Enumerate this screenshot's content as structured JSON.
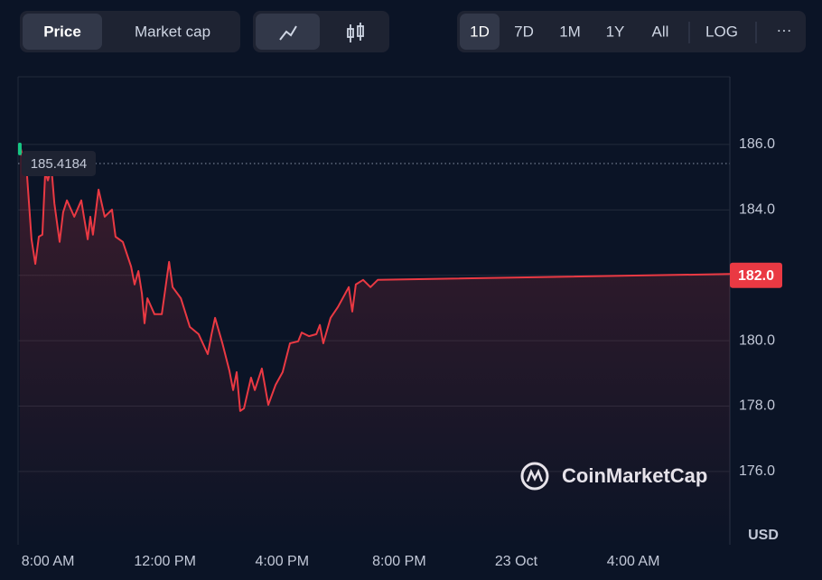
{
  "controls": {
    "metric": [
      "Price",
      "Market cap"
    ],
    "ranges": [
      "1D",
      "7D",
      "1M",
      "1Y",
      "All"
    ],
    "log": "LOG",
    "more": "···"
  },
  "chart_data": {
    "type": "line",
    "color": "#ea3943",
    "start_color": "#16c784",
    "x": [
      7.04,
      7.29,
      7.44,
      7.57,
      7.69,
      7.81,
      7.91,
      8.0,
      8.12,
      8.22,
      8.4,
      8.52,
      8.65,
      8.9,
      9.14,
      9.23,
      9.36,
      9.45,
      9.54,
      9.73,
      9.94,
      10.19,
      10.31,
      10.56,
      10.84,
      10.96,
      11.09,
      11.21,
      11.3,
      11.4,
      11.64,
      11.89,
      12.01,
      12.14,
      12.26,
      12.54,
      12.85,
      13.15,
      13.46,
      13.59,
      13.71,
      13.96,
      14.2,
      14.33,
      14.45,
      14.57,
      14.7,
      14.94,
      15.07,
      15.31,
      15.53,
      15.78,
      16.02,
      16.27,
      16.55,
      16.67,
      16.92,
      17.17,
      17.29,
      17.41,
      17.66,
      17.91,
      18.28,
      18.4,
      18.52,
      18.77,
      19.02,
      19.27,
      31.3
    ],
    "values": [
      186.0,
      185.03,
      183.1,
      182.35,
      183.18,
      183.24,
      185.17,
      184.9,
      185.31,
      184.2,
      183.02,
      183.93,
      184.29,
      183.79,
      184.29,
      183.79,
      183.1,
      183.79,
      183.24,
      184.62,
      183.79,
      184.01,
      183.18,
      183.02,
      182.27,
      181.72,
      182.13,
      181.44,
      180.53,
      181.3,
      180.81,
      180.81,
      181.58,
      182.41,
      181.64,
      181.3,
      180.42,
      180.2,
      179.59,
      180.2,
      180.7,
      179.92,
      179.09,
      178.49,
      179.04,
      177.85,
      177.93,
      178.87,
      178.49,
      179.15,
      178.04,
      178.65,
      179.04,
      179.92,
      179.98,
      180.25,
      180.14,
      180.2,
      180.48,
      179.92,
      180.7,
      181.03,
      181.64,
      180.89,
      181.72,
      181.86,
      181.64,
      181.86,
      182.04
    ],
    "xlim": [
      6.98,
      31.3
    ],
    "xticks": [
      {
        "value": 8,
        "label": "8:00 AM"
      },
      {
        "value": 12,
        "label": "12:00 PM"
      },
      {
        "value": 16,
        "label": "4:00 PM"
      },
      {
        "value": 20,
        "label": "8:00 PM"
      },
      {
        "value": 24,
        "label": "23 Oct"
      },
      {
        "value": 28,
        "label": "4:00 AM"
      }
    ],
    "ylim": [
      173.76,
      188.07
    ],
    "yticks": [
      {
        "value": 176,
        "label": "176.0"
      },
      {
        "value": 178,
        "label": "178.0"
      },
      {
        "value": 180,
        "label": "180.0"
      },
      {
        "value": 182,
        "label": "182.0"
      },
      {
        "value": 184,
        "label": "184.0"
      },
      {
        "value": 186,
        "label": "186.0"
      }
    ],
    "grid": true,
    "markers": [
      {
        "value": 185.4184
      },
      {
        "value": 182.0,
        "label": "182.0",
        "color": "#ea3943"
      }
    ],
    "currency": "USD",
    "watermark": "CoinMarketCap"
  }
}
